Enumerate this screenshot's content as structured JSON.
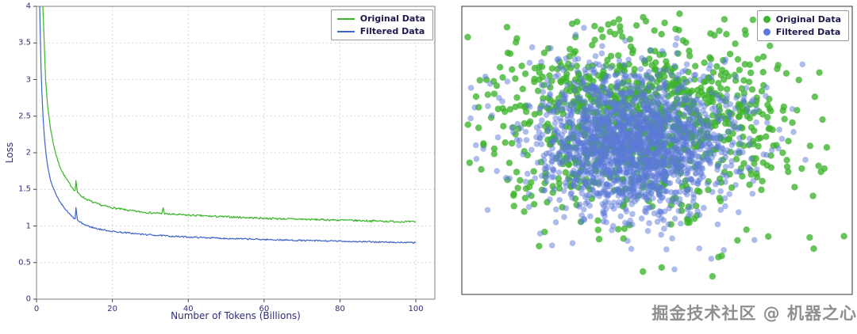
{
  "watermark": "掘金技术社区 @ 机器之心",
  "colors": {
    "axis_text": "#2e2e7a",
    "legend_text": "#1a1a4e",
    "grid": "#cccccc",
    "frame": "#808080",
    "original_green": "#3bb32a",
    "filtered_blue": "#3f63c8",
    "scatter_blue": "#5b79d8"
  },
  "chart_data": [
    {
      "type": "line",
      "title": "",
      "xlabel": "Number of Tokens (Billions)",
      "ylabel": "Loss",
      "xlim": [
        0,
        105
      ],
      "ylim": [
        0,
        4
      ],
      "xticks": [
        0,
        20,
        40,
        60,
        80,
        100
      ],
      "yticks": [
        0,
        0.5,
        1,
        1.5,
        2,
        2.5,
        3,
        3.5,
        4
      ],
      "grid": true,
      "legend_position": "top-right",
      "legend": [
        "Original Data",
        "Filtered Data"
      ],
      "noise_seed": 7,
      "series": [
        {
          "name": "Original Data",
          "color": "#3bb32a",
          "noise": 0.013,
          "points": [
            [
              1.6,
              4.1
            ],
            [
              1.9,
              3.7
            ],
            [
              2.1,
              3.4
            ],
            [
              2.4,
              3.0
            ],
            [
              2.8,
              2.72
            ],
            [
              3.2,
              2.52
            ],
            [
              3.7,
              2.33
            ],
            [
              4.3,
              2.16
            ],
            [
              5.0,
              2.0
            ],
            [
              5.8,
              1.86
            ],
            [
              6.6,
              1.76
            ],
            [
              7.5,
              1.67
            ],
            [
              8.5,
              1.59
            ],
            [
              9.5,
              1.52
            ],
            [
              10.2,
              1.48
            ],
            [
              10.45,
              1.66
            ],
            [
              10.7,
              1.46
            ],
            [
              11.5,
              1.42
            ],
            [
              13,
              1.37
            ],
            [
              15,
              1.32
            ],
            [
              17,
              1.285
            ],
            [
              19,
              1.26
            ],
            [
              21,
              1.24
            ],
            [
              24,
              1.215
            ],
            [
              27,
              1.195
            ],
            [
              30,
              1.18
            ],
            [
              33,
              1.17
            ],
            [
              33.4,
              1.24
            ],
            [
              33.8,
              1.165
            ],
            [
              37,
              1.155
            ],
            [
              41,
              1.145
            ],
            [
              45,
              1.135
            ],
            [
              50,
              1.125
            ],
            [
              55,
              1.115
            ],
            [
              60,
              1.105
            ],
            [
              65,
              1.098
            ],
            [
              70,
              1.092
            ],
            [
              75,
              1.086
            ],
            [
              80,
              1.08
            ],
            [
              85,
              1.073
            ],
            [
              90,
              1.067
            ],
            [
              95,
              1.06
            ],
            [
              100,
              1.055
            ]
          ]
        },
        {
          "name": "Filtered Data",
          "color": "#3f63c8",
          "noise": 0.01,
          "points": [
            [
              0.8,
              4.1
            ],
            [
              1.0,
              3.6
            ],
            [
              1.2,
              3.15
            ],
            [
              1.5,
              2.72
            ],
            [
              1.8,
              2.42
            ],
            [
              2.2,
              2.14
            ],
            [
              2.6,
              1.94
            ],
            [
              3.1,
              1.77
            ],
            [
              3.7,
              1.63
            ],
            [
              4.4,
              1.52
            ],
            [
              5.2,
              1.42
            ],
            [
              6.1,
              1.33
            ],
            [
              7.1,
              1.26
            ],
            [
              8.2,
              1.19
            ],
            [
              9.3,
              1.13
            ],
            [
              10.2,
              1.09
            ],
            [
              10.45,
              1.3
            ],
            [
              10.7,
              1.08
            ],
            [
              11.5,
              1.05
            ],
            [
              13,
              1.01
            ],
            [
              15,
              0.975
            ],
            [
              17,
              0.952
            ],
            [
              19,
              0.935
            ],
            [
              21,
              0.92
            ],
            [
              24,
              0.905
            ],
            [
              27,
              0.89
            ],
            [
              30,
              0.878
            ],
            [
              34,
              0.865
            ],
            [
              38,
              0.853
            ],
            [
              42,
              0.845
            ],
            [
              46,
              0.838
            ],
            [
              50,
              0.83
            ],
            [
              55,
              0.822
            ],
            [
              60,
              0.815
            ],
            [
              65,
              0.808
            ],
            [
              70,
              0.802
            ],
            [
              75,
              0.797
            ],
            [
              80,
              0.792
            ],
            [
              85,
              0.786
            ],
            [
              90,
              0.781
            ],
            [
              95,
              0.776
            ],
            [
              100,
              0.772
            ]
          ]
        }
      ]
    },
    {
      "type": "scatter",
      "title": "",
      "axes_visible": false,
      "legend_position": "top-right",
      "legend": [
        "Original Data",
        "Filtered Data"
      ],
      "seed": 42,
      "series": [
        {
          "name": "Original Data",
          "color": "#3cb32c",
          "alpha": 0.78,
          "r": 4.2,
          "n": 1050,
          "clusters": [
            {
              "frac": 0.72,
              "cx": 0.45,
              "cy": 0.38,
              "sx": 0.17,
              "sy": 0.14
            },
            {
              "frac": 0.28,
              "cx": 0.47,
              "cy": 0.46,
              "sx": 0.26,
              "sy": 0.21
            }
          ]
        },
        {
          "name": "Filtered Data",
          "color": "#5b79d8",
          "alpha": 0.5,
          "r": 3.8,
          "n": 1900,
          "clusters": [
            {
              "frac": 0.85,
              "cx": 0.44,
              "cy": 0.48,
              "sx": 0.115,
              "sy": 0.115
            },
            {
              "frac": 0.15,
              "cx": 0.45,
              "cy": 0.43,
              "sx": 0.2,
              "sy": 0.17
            }
          ]
        }
      ]
    }
  ]
}
